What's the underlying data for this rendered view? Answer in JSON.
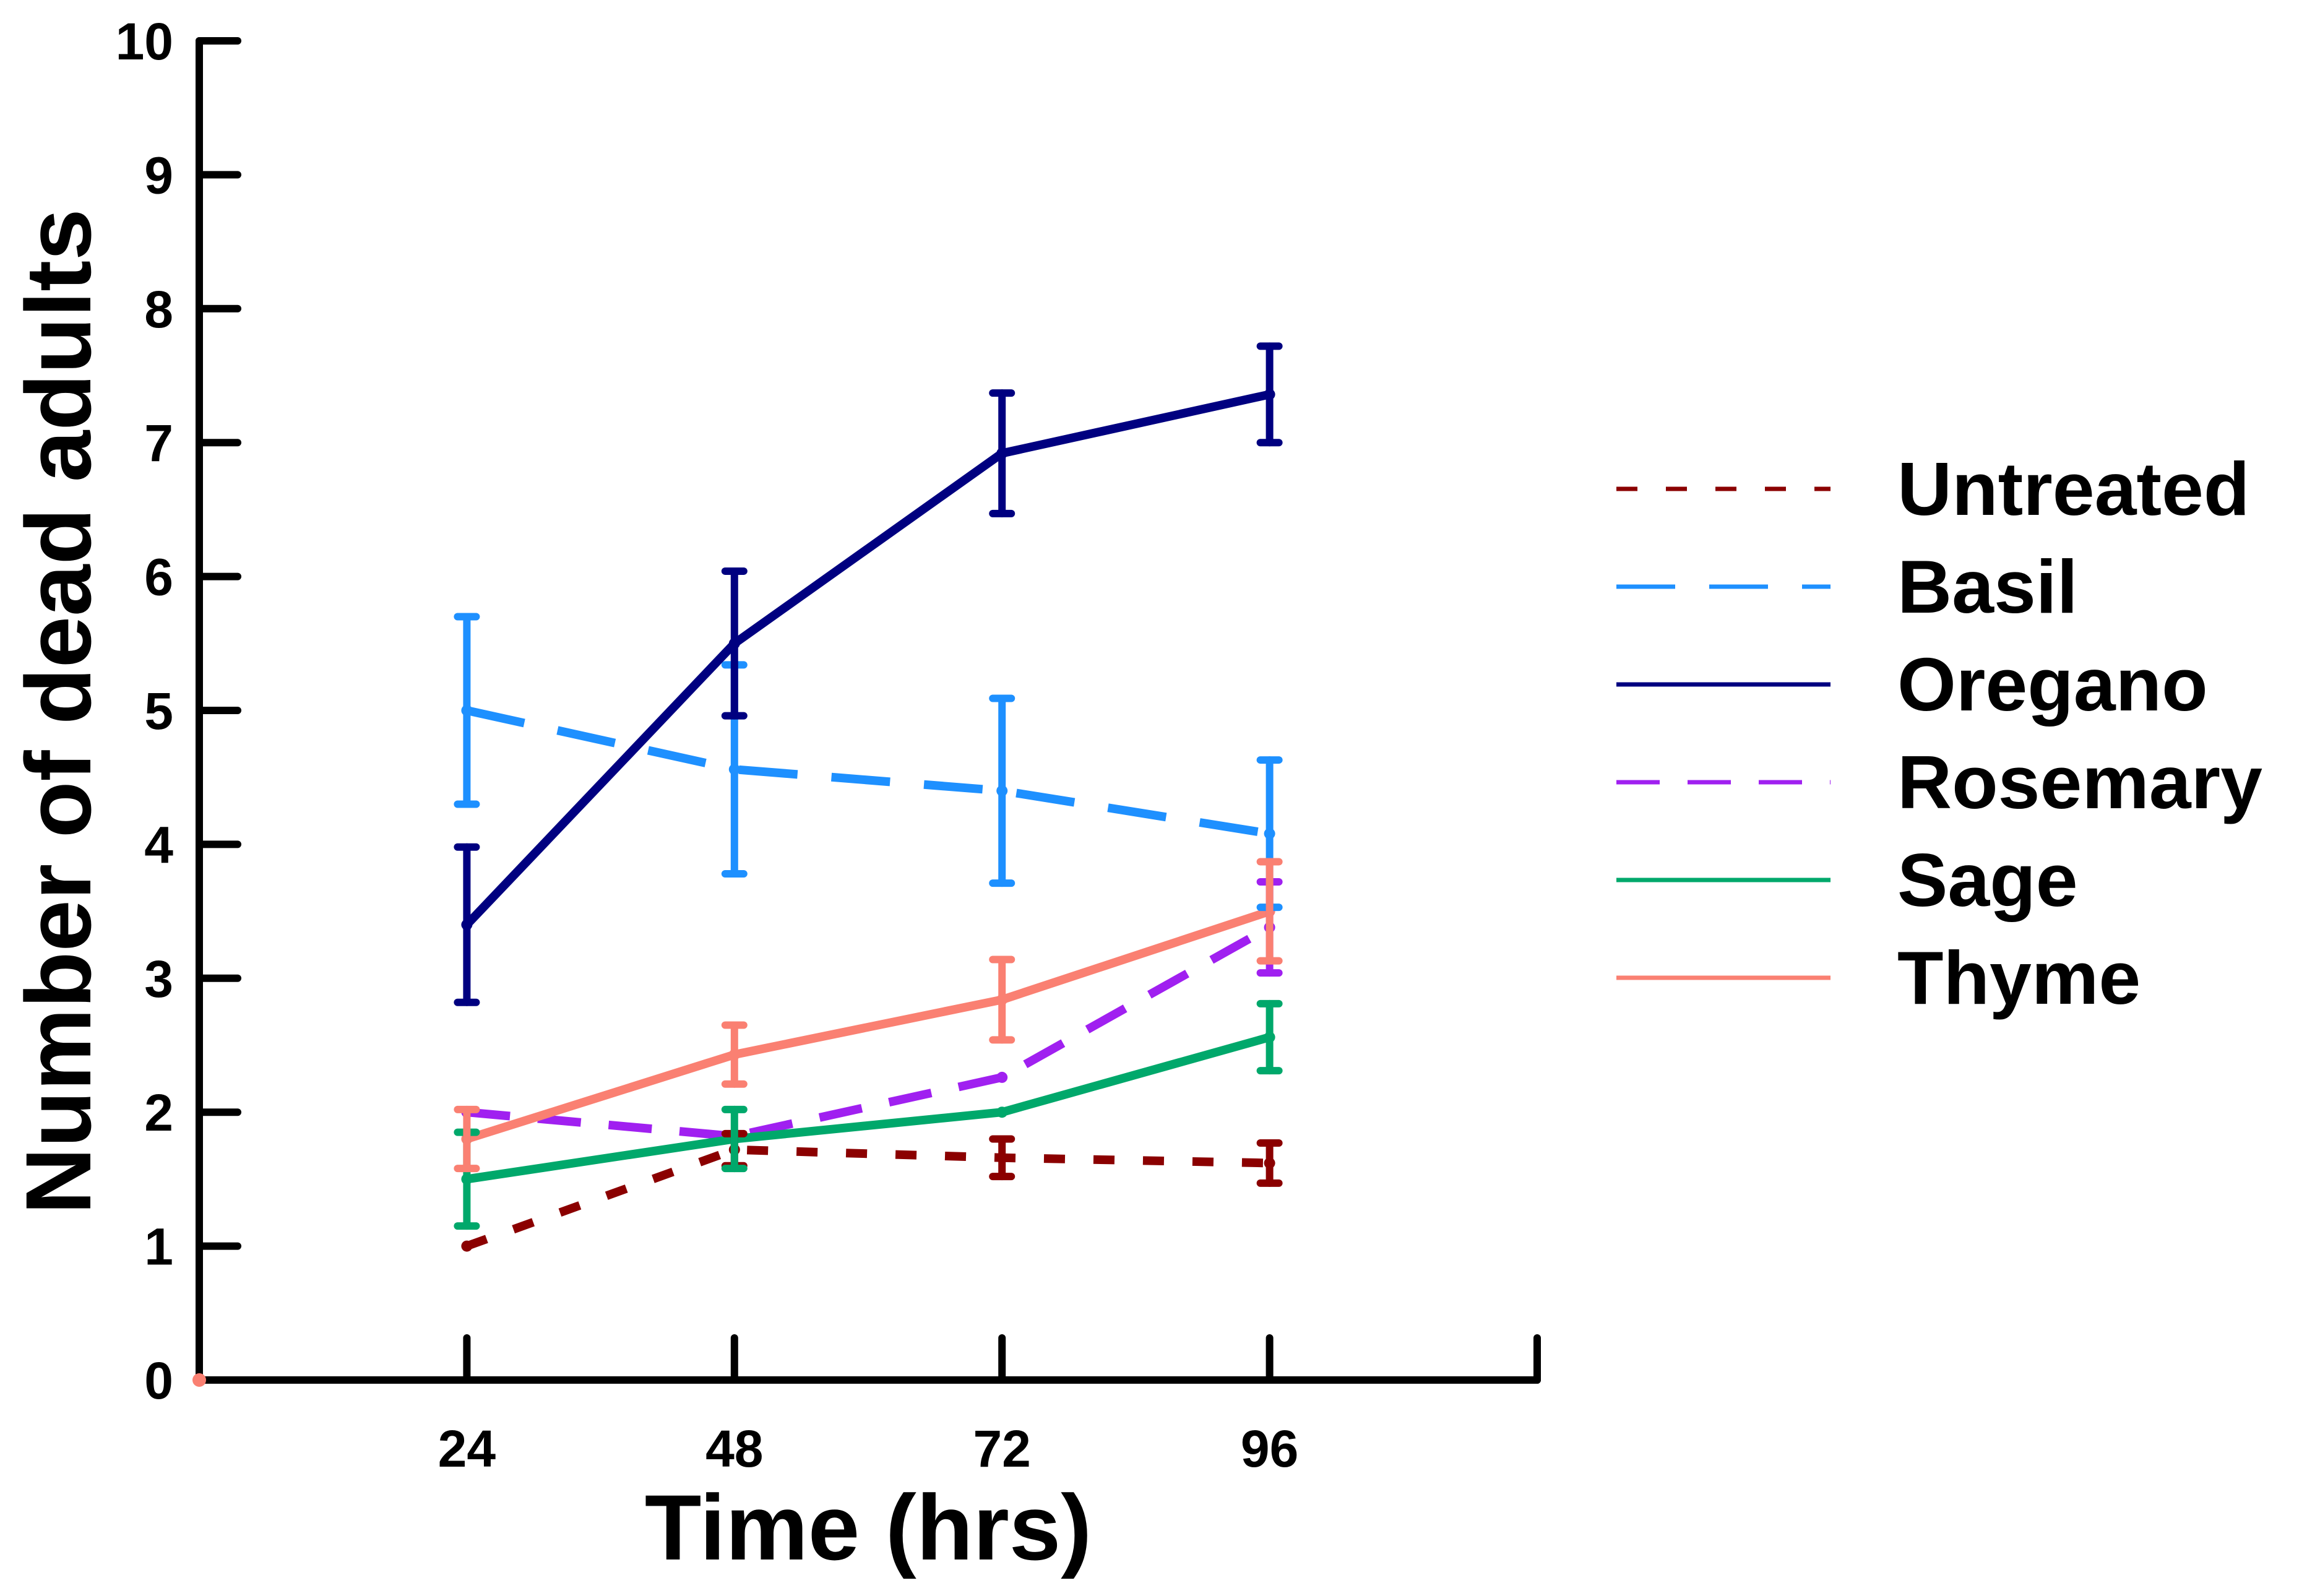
{
  "chart_data": {
    "type": "line",
    "title": "",
    "xlabel": "Time (hrs)",
    "ylabel": "Number of dead adults",
    "x": [
      24,
      48,
      72,
      96
    ],
    "x_tick_labels": [
      "24",
      "48",
      "72",
      "96"
    ],
    "xlim": [
      0,
      120
    ],
    "ylim": [
      0,
      10
    ],
    "y_ticks": [
      0,
      1,
      2,
      3,
      4,
      5,
      6,
      7,
      8,
      9,
      10
    ],
    "y_tick_labels": [
      "0",
      "1",
      "2",
      "3",
      "4",
      "5",
      "6",
      "7",
      "8",
      "9",
      "10"
    ],
    "grid": false,
    "legend_position": "right",
    "series": [
      {
        "name": "Untreated",
        "color": "#8b0000",
        "dash": "short-dash",
        "values": [
          1.0,
          1.72,
          1.66,
          1.62
        ],
        "errors": [
          0.0,
          0.12,
          0.14,
          0.15
        ]
      },
      {
        "name": "Basil",
        "color": "#1e90ff",
        "dash": "long-dash",
        "values": [
          5.0,
          4.56,
          4.4,
          4.08
        ],
        "errors": [
          0.7,
          0.78,
          0.69,
          0.55
        ]
      },
      {
        "name": "Oregano",
        "color": "#000080",
        "dash": "solid",
        "values": [
          3.4,
          5.5,
          6.92,
          7.36
        ],
        "errors": [
          0.58,
          0.54,
          0.45,
          0.36
        ]
      },
      {
        "name": "Rosemary",
        "color": "#a020f0",
        "dash": "medium-dash",
        "values": [
          2.0,
          1.82,
          2.26,
          3.38
        ],
        "errors": [
          0.0,
          0.0,
          0.0,
          0.34
        ]
      },
      {
        "name": "Sage",
        "color": "#00a86b",
        "dash": "solid",
        "values": [
          1.5,
          1.8,
          2.0,
          2.56
        ],
        "errors": [
          0.35,
          0.22,
          0.0,
          0.25
        ]
      },
      {
        "name": "Thyme",
        "color": "#fa8072",
        "dash": "solid",
        "values": [
          1.8,
          2.43,
          2.84,
          3.5
        ],
        "errors": [
          0.22,
          0.22,
          0.3,
          0.37
        ]
      }
    ]
  }
}
